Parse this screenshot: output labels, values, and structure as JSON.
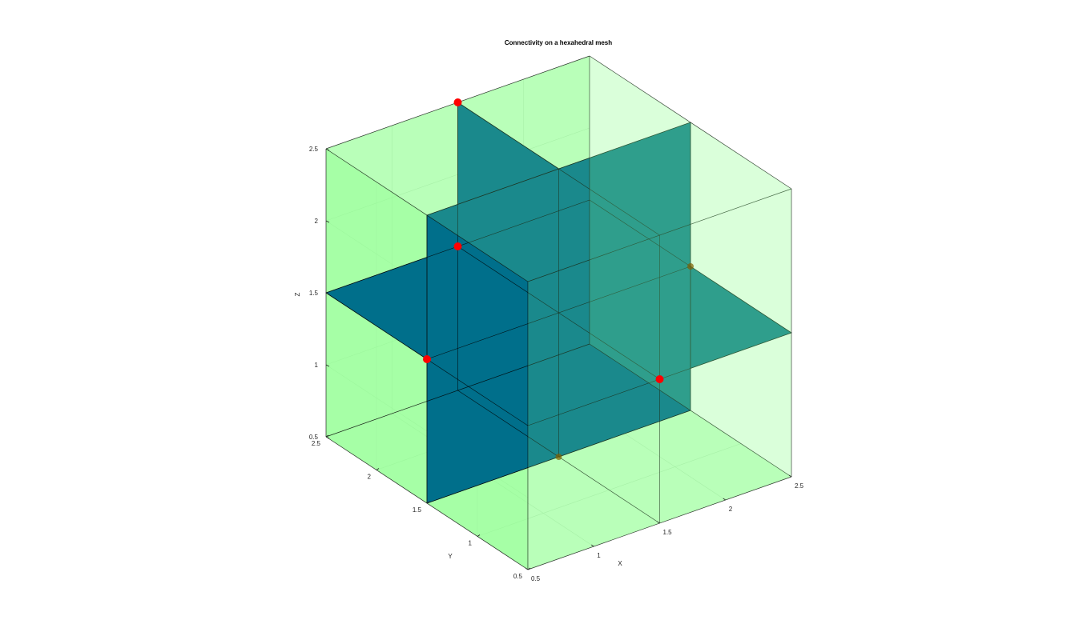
{
  "chart_data": {
    "type": "3d-patch",
    "title": "Connectivity on a hexahedral mesh",
    "xlabel": "X",
    "ylabel": "Y",
    "zlabel": "Z",
    "xlim": [
      0.5,
      2.5
    ],
    "ylim": [
      0.5,
      2.5
    ],
    "zlim": [
      0.5,
      2.5
    ],
    "x_ticks": [
      "0.5",
      "1",
      "1.5",
      "2",
      "2.5"
    ],
    "y_ticks": [
      "0.5",
      "1",
      "1.5",
      "2",
      "2.5"
    ],
    "z_ticks": [
      "0.5",
      "1",
      "1.5",
      "2",
      "2.5"
    ],
    "grid": true,
    "colors": {
      "cells": "#90ff90",
      "interior_faces": "#006f8b",
      "connectivity_points": "#ff0000",
      "hidden_points": "#806000",
      "edges": "#000000"
    },
    "interior_faces": [
      {
        "plane": "x",
        "value": 1.5
      },
      {
        "plane": "y",
        "value": 1.5
      },
      {
        "plane": "z",
        "value": 1.5
      }
    ],
    "points": [
      [
        1.5,
        2.5,
        2.5
      ],
      [
        2.5,
        1.5,
        1.5
      ],
      [
        0.5,
        1.5,
        1.5
      ],
      [
        1.5,
        0.5,
        1.5
      ],
      [
        1.5,
        2.5,
        1.5
      ],
      [
        1.5,
        1.5,
        0.5
      ]
    ]
  }
}
